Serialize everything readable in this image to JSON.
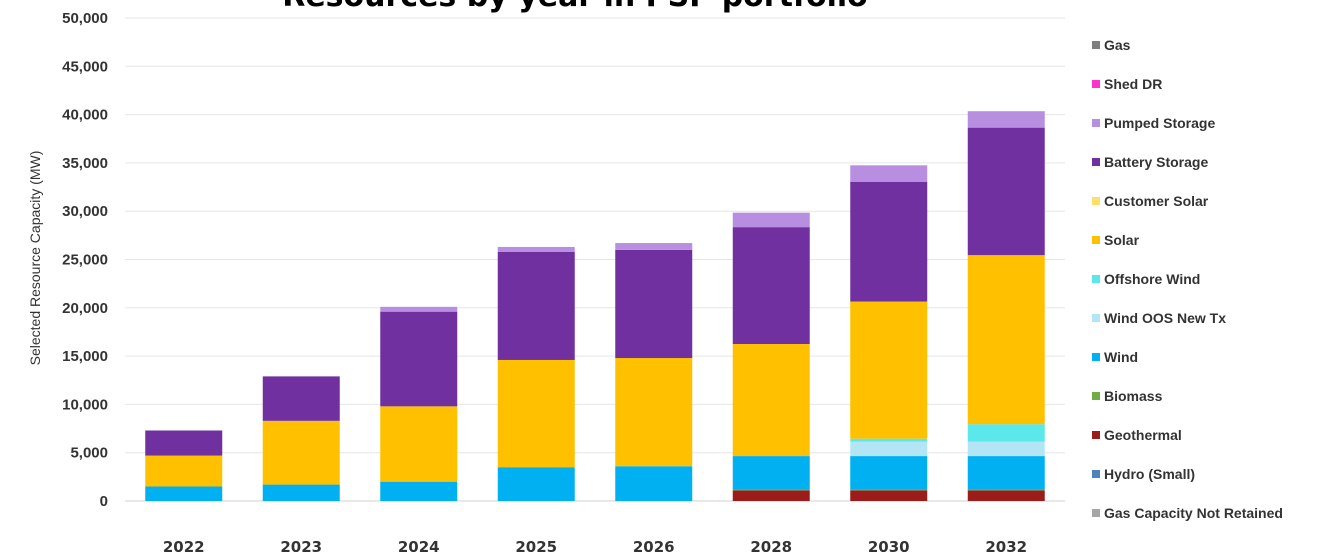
{
  "chart_data": {
    "type": "bar",
    "stacked": true,
    "title": "Resources by year in PSP portfolio",
    "ylabel": "Selected Resource Capacity (MW)",
    "xlabel": "",
    "ylim": [
      0,
      50000
    ],
    "yticks": [
      0,
      5000,
      10000,
      15000,
      20000,
      25000,
      30000,
      35000,
      40000,
      45000,
      50000
    ],
    "ytick_labels": [
      "0",
      "5,000",
      "10,000",
      "15,000",
      "20,000",
      "25,000",
      "30,000",
      "35,000",
      "40,000",
      "45,000",
      "50,000"
    ],
    "categories": [
      "2022",
      "2023",
      "2024",
      "2025",
      "2026",
      "2028",
      "2030",
      "2032"
    ],
    "grid": true,
    "legend_position": "right",
    "series": [
      {
        "name": "Gas Capacity Not Retained",
        "color": "#a6a6a6",
        "values": [
          0,
          0,
          0,
          0,
          0,
          0,
          0,
          0
        ]
      },
      {
        "name": "Hydro (Small)",
        "color": "#4f81bd",
        "values": [
          0,
          0,
          0,
          0,
          0,
          0,
          0,
          0
        ]
      },
      {
        "name": "Geothermal",
        "color": "#9c1c1c",
        "values": [
          0,
          0,
          0,
          0,
          0,
          1100,
          1100,
          1100
        ]
      },
      {
        "name": "Biomass",
        "color": "#70ad47",
        "values": [
          0,
          0,
          0,
          0,
          0,
          50,
          50,
          50
        ]
      },
      {
        "name": "Wind",
        "color": "#00b0f0",
        "values": [
          1500,
          1700,
          2000,
          3500,
          3600,
          3500,
          3500,
          3500
        ]
      },
      {
        "name": "Wind OOS New Tx",
        "color": "#b3e5f5",
        "values": [
          0,
          0,
          0,
          0,
          0,
          0,
          1500,
          1500
        ]
      },
      {
        "name": "Offshore Wind",
        "color": "#5ae8ea",
        "values": [
          0,
          0,
          0,
          0,
          0,
          0,
          300,
          1800
        ]
      },
      {
        "name": "Solar",
        "color": "#ffc000",
        "values": [
          3200,
          6600,
          7800,
          11100,
          11200,
          11600,
          14200,
          17500
        ]
      },
      {
        "name": "Customer Solar",
        "color": "#ffe066",
        "values": [
          0,
          0,
          0,
          0,
          0,
          0,
          0,
          0
        ]
      },
      {
        "name": "Battery Storage",
        "color": "#7030a0",
        "values": [
          2600,
          4600,
          9800,
          11200,
          11200,
          12100,
          12400,
          13200
        ]
      },
      {
        "name": "Pumped Storage",
        "color": "#b88ee0",
        "values": [
          0,
          0,
          500,
          500,
          700,
          1500,
          1700,
          1700
        ]
      },
      {
        "name": "Shed DR",
        "color": "#ff33cc",
        "values": [
          0,
          0,
          0,
          0,
          0,
          0,
          0,
          0
        ]
      },
      {
        "name": "Gas",
        "color": "#7f7f7f",
        "values": [
          0,
          0,
          0,
          0,
          0,
          0,
          0,
          0
        ]
      }
    ],
    "legend_order": [
      "Gas",
      "Shed DR",
      "Pumped Storage",
      "Battery Storage",
      "Customer Solar",
      "Solar",
      "Offshore Wind",
      "Wind OOS New Tx",
      "Wind",
      "Biomass",
      "Geothermal",
      "Hydro (Small)",
      "Gas Capacity Not Retained"
    ]
  }
}
